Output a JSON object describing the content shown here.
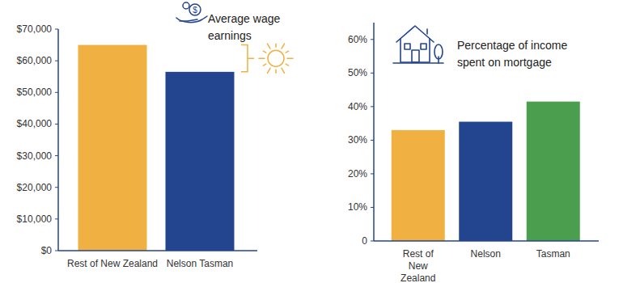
{
  "chart_data": [
    {
      "type": "bar",
      "title": "Average wage earnings",
      "categories": [
        "Rest of New Zealand",
        "Nelson Tasman"
      ],
      "values": [
        65000,
        56500
      ],
      "colors": [
        "#f0b142",
        "#23448f"
      ],
      "ylim": [
        0,
        70000
      ],
      "yticks": [
        {
          "value": 0,
          "label": "$0"
        },
        {
          "value": 10000,
          "label": "$10,000"
        },
        {
          "value": 20000,
          "label": "$20,000"
        },
        {
          "value": 30000,
          "label": "$30,000"
        },
        {
          "value": 40000,
          "label": "$40,000"
        },
        {
          "value": 50000,
          "label": "$50,000"
        },
        {
          "value": 60000,
          "label": "$60,000"
        },
        {
          "value": 70000,
          "label": "$70,000"
        }
      ],
      "grid": false
    },
    {
      "type": "bar",
      "title": "Percentage of income spent on mortgage",
      "categories": [
        "Rest of New Zealand",
        "Nelson",
        "Tasman"
      ],
      "values": [
        33,
        35.5,
        41.5
      ],
      "colors": [
        "#f0b142",
        "#23448f",
        "#4a9e4e"
      ],
      "ylim": [
        0,
        65
      ],
      "yticks": [
        0,
        {
          "value": 10,
          "label": "10%"
        },
        {
          "value": 20,
          "label": "20%"
        },
        {
          "value": 30,
          "label": "30%"
        },
        {
          "value": 40,
          "label": "40%"
        },
        {
          "value": 50,
          "label": "50%"
        },
        {
          "value": 60,
          "label": "60%"
        }
      ],
      "grid": false
    }
  ]
}
